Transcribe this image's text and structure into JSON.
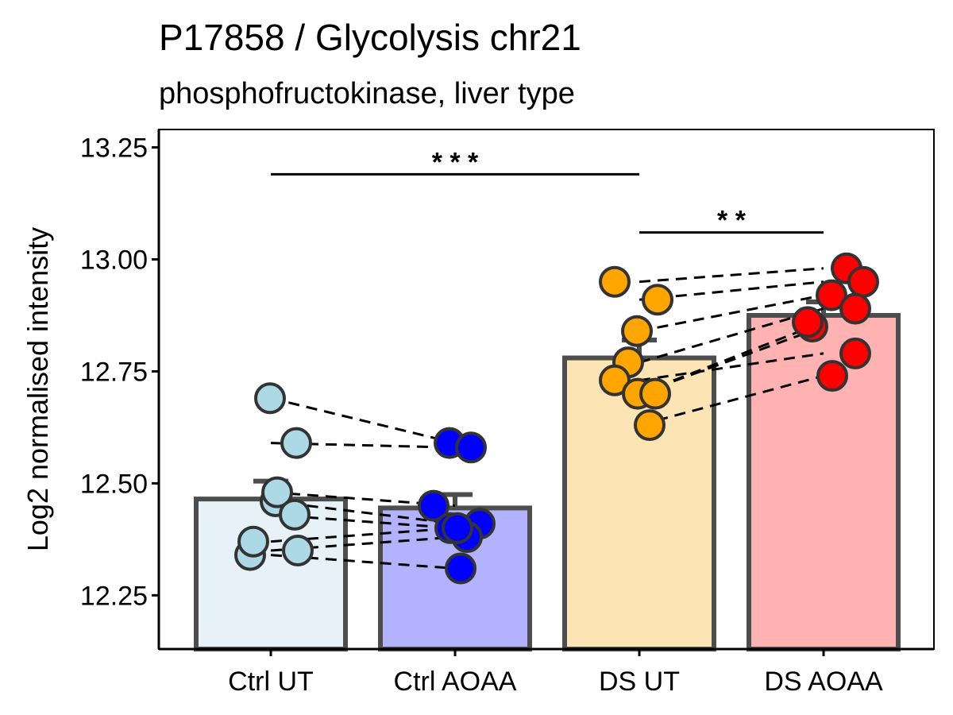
{
  "chart_data": {
    "type": "bar",
    "title": "P17858 / Glycolysis chr21",
    "subtitle": "phosphofructokinase, liver type",
    "xlabel": "",
    "ylabel": "Log2 normalised intensity",
    "ylim": [
      12.13,
      13.29
    ],
    "yticks": [
      "12.25",
      "12.50",
      "12.75",
      "13.00",
      "13.25"
    ],
    "grid": false,
    "categories": [
      "Ctrl UT",
      "Ctrl AOAA",
      "DS UT",
      "DS AOAA"
    ],
    "values": [
      12.465,
      12.445,
      12.78,
      12.875
    ],
    "errors": [
      0.04,
      0.03,
      0.04,
      0.03
    ],
    "colors": {
      "bar_fill": [
        "#e7f2f8",
        "#b2b2ff",
        "#fde4b4",
        "#ffb2b2"
      ],
      "point_fill": [
        "#add8e6",
        "#0000ff",
        "#ffa500",
        "#ff0000"
      ],
      "outline": "#4d4d4d"
    },
    "points": [
      {
        "x": 0,
        "y": 12.34
      },
      {
        "x": 0,
        "y": 12.37
      },
      {
        "x": 0,
        "y": 12.46
      },
      {
        "x": 0,
        "y": 12.48
      },
      {
        "x": 0,
        "y": 12.43
      },
      {
        "x": 0,
        "y": 12.35
      },
      {
        "x": 0,
        "y": 12.59
      },
      {
        "x": 0,
        "y": 12.69
      },
      {
        "x": 1,
        "y": 12.59
      },
      {
        "x": 1,
        "y": 12.58
      },
      {
        "x": 1,
        "y": 12.45
      },
      {
        "x": 1,
        "y": 12.4
      },
      {
        "x": 1,
        "y": 12.41
      },
      {
        "x": 1,
        "y": 12.38
      },
      {
        "x": 1,
        "y": 12.31
      },
      {
        "x": 1,
        "y": 12.4
      },
      {
        "x": 2,
        "y": 12.95
      },
      {
        "x": 2,
        "y": 12.91
      },
      {
        "x": 2,
        "y": 12.84
      },
      {
        "x": 2,
        "y": 12.77
      },
      {
        "x": 2,
        "y": 12.73
      },
      {
        "x": 2,
        "y": 12.7
      },
      {
        "x": 2,
        "y": 12.7
      },
      {
        "x": 2,
        "y": 12.63
      },
      {
        "x": 3,
        "y": 12.98
      },
      {
        "x": 3,
        "y": 12.95
      },
      {
        "x": 3,
        "y": 12.92
      },
      {
        "x": 3,
        "y": 12.89
      },
      {
        "x": 3,
        "y": 12.85
      },
      {
        "x": 3,
        "y": 12.86
      },
      {
        "x": 3,
        "y": 12.79
      },
      {
        "x": 3,
        "y": 12.74
      }
    ],
    "pairs": [
      {
        "from": 0,
        "y1": 12.69,
        "to": 1,
        "y2": 12.59
      },
      {
        "from": 0,
        "y1": 12.59,
        "to": 1,
        "y2": 12.58
      },
      {
        "from": 0,
        "y1": 12.48,
        "to": 1,
        "y2": 12.45
      },
      {
        "from": 0,
        "y1": 12.46,
        "to": 1,
        "y2": 12.41
      },
      {
        "from": 0,
        "y1": 12.43,
        "to": 1,
        "y2": 12.4
      },
      {
        "from": 0,
        "y1": 12.37,
        "to": 1,
        "y2": 12.4
      },
      {
        "from": 0,
        "y1": 12.35,
        "to": 1,
        "y2": 12.38
      },
      {
        "from": 0,
        "y1": 12.34,
        "to": 1,
        "y2": 12.31
      },
      {
        "from": 2,
        "y1": 12.95,
        "to": 3,
        "y2": 12.98
      },
      {
        "from": 2,
        "y1": 12.91,
        "to": 3,
        "y2": 12.95
      },
      {
        "from": 2,
        "y1": 12.84,
        "to": 3,
        "y2": 12.92
      },
      {
        "from": 2,
        "y1": 12.77,
        "to": 3,
        "y2": 12.89
      },
      {
        "from": 2,
        "y1": 12.73,
        "to": 3,
        "y2": 12.79
      },
      {
        "from": 2,
        "y1": 12.7,
        "to": 3,
        "y2": 12.86
      },
      {
        "from": 2,
        "y1": 12.7,
        "to": 3,
        "y2": 12.85
      },
      {
        "from": 2,
        "y1": 12.63,
        "to": 3,
        "y2": 12.74
      }
    ],
    "significance": [
      {
        "from": 0,
        "to": 2,
        "y": 13.19,
        "label": "* * *"
      },
      {
        "from": 2,
        "to": 3,
        "y": 13.06,
        "label": "* *"
      }
    ]
  }
}
